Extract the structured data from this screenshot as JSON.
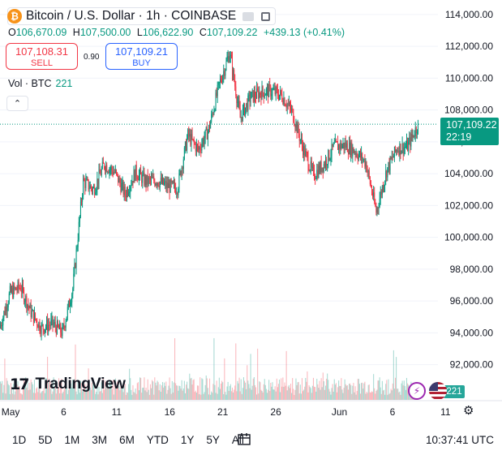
{
  "header": {
    "coin_glyph": "₿",
    "symbol_title": "Bitcoin / U.S. Dollar · 1h · COINBASE"
  },
  "ohlc": {
    "open_label": "O",
    "open": "106,670.09",
    "high_label": "H",
    "high": "107,500.00",
    "low_label": "L",
    "low": "106,622.90",
    "close_label": "C",
    "close": "107,109.22",
    "change": "+439.13 (+0.41%)"
  },
  "trade": {
    "sell_price": "107,108.31",
    "sell_label": "SELL",
    "spread": "0.90",
    "buy_price": "107,109.21",
    "buy_label": "BUY"
  },
  "volume_legend": {
    "label": "Vol · BTC",
    "value": "221"
  },
  "collapse_glyph": "⌃",
  "last_price_tag": {
    "price": "107,109.22",
    "countdown": "22:19"
  },
  "volume_tag": "221",
  "logo": {
    "mark": "17",
    "text": "TradingView"
  },
  "flash_glyph": "⚡",
  "settings_glyph": "⚙",
  "timeframes": [
    "1D",
    "5D",
    "1M",
    "3M",
    "6M",
    "YTD",
    "1Y",
    "5Y",
    "All"
  ],
  "clock": "10:37:41 UTC",
  "colors": {
    "up": "#089981",
    "down": "#f23645",
    "accent": "#2962ff"
  },
  "chart_data": {
    "type": "candlestick",
    "interval": "1h",
    "x_ticks": [
      "May",
      "6",
      "11",
      "16",
      "21",
      "26",
      "Jun",
      "6",
      "11"
    ],
    "y_ticks": [
      "92,000.00",
      "94,000.00",
      "96,000.00",
      "98,000.00",
      "100,000.00",
      "102,000.00",
      "104,000.00",
      "106,000.00",
      "108,000.00",
      "110,000.00",
      "112,000.00",
      "114,000.00"
    ],
    "ylim": [
      90960,
      114350
    ],
    "last_price": 107109.22,
    "volume_last": 221,
    "series_daily_close_approx": [
      {
        "date": "May 1",
        "close": 96500
      },
      {
        "date": "May 2",
        "close": 96900
      },
      {
        "date": "May 3",
        "close": 95300
      },
      {
        "date": "May 4",
        "close": 94300
      },
      {
        "date": "May 5",
        "close": 94600
      },
      {
        "date": "May 6",
        "close": 94000
      },
      {
        "date": "May 7",
        "close": 96800
      },
      {
        "date": "May 8",
        "close": 103500
      },
      {
        "date": "May 9",
        "close": 103000
      },
      {
        "date": "May 10",
        "close": 104600
      },
      {
        "date": "May 11",
        "close": 104100
      },
      {
        "date": "May 12",
        "close": 102700
      },
      {
        "date": "May 13",
        "close": 104100
      },
      {
        "date": "May 14",
        "close": 103500
      },
      {
        "date": "May 15",
        "close": 103600
      },
      {
        "date": "May 16",
        "close": 103200
      },
      {
        "date": "May 17",
        "close": 103100
      },
      {
        "date": "May 18",
        "close": 106400
      },
      {
        "date": "May 19",
        "close": 105500
      },
      {
        "date": "May 20",
        "close": 106800
      },
      {
        "date": "May 21",
        "close": 109600
      },
      {
        "date": "May 22",
        "close": 111600
      },
      {
        "date": "May 23",
        "close": 107500
      },
      {
        "date": "May 24",
        "close": 108800
      },
      {
        "date": "May 25",
        "close": 109100
      },
      {
        "date": "May 26",
        "close": 109200
      },
      {
        "date": "May 27",
        "close": 108900
      },
      {
        "date": "May 28",
        "close": 107800
      },
      {
        "date": "May 29",
        "close": 105600
      },
      {
        "date": "May 30",
        "close": 103900
      },
      {
        "date": "May 31",
        "close": 104600
      },
      {
        "date": "Jun 1",
        "close": 105700
      },
      {
        "date": "Jun 2",
        "close": 105800
      },
      {
        "date": "Jun 3",
        "close": 105400
      },
      {
        "date": "Jun 4",
        "close": 104700
      },
      {
        "date": "Jun 5",
        "close": 101600
      },
      {
        "date": "Jun 6",
        "close": 104200
      },
      {
        "date": "Jun 7",
        "close": 105600
      },
      {
        "date": "Jun 8",
        "close": 105700
      },
      {
        "date": "Jun 9",
        "close": 107109
      }
    ]
  }
}
